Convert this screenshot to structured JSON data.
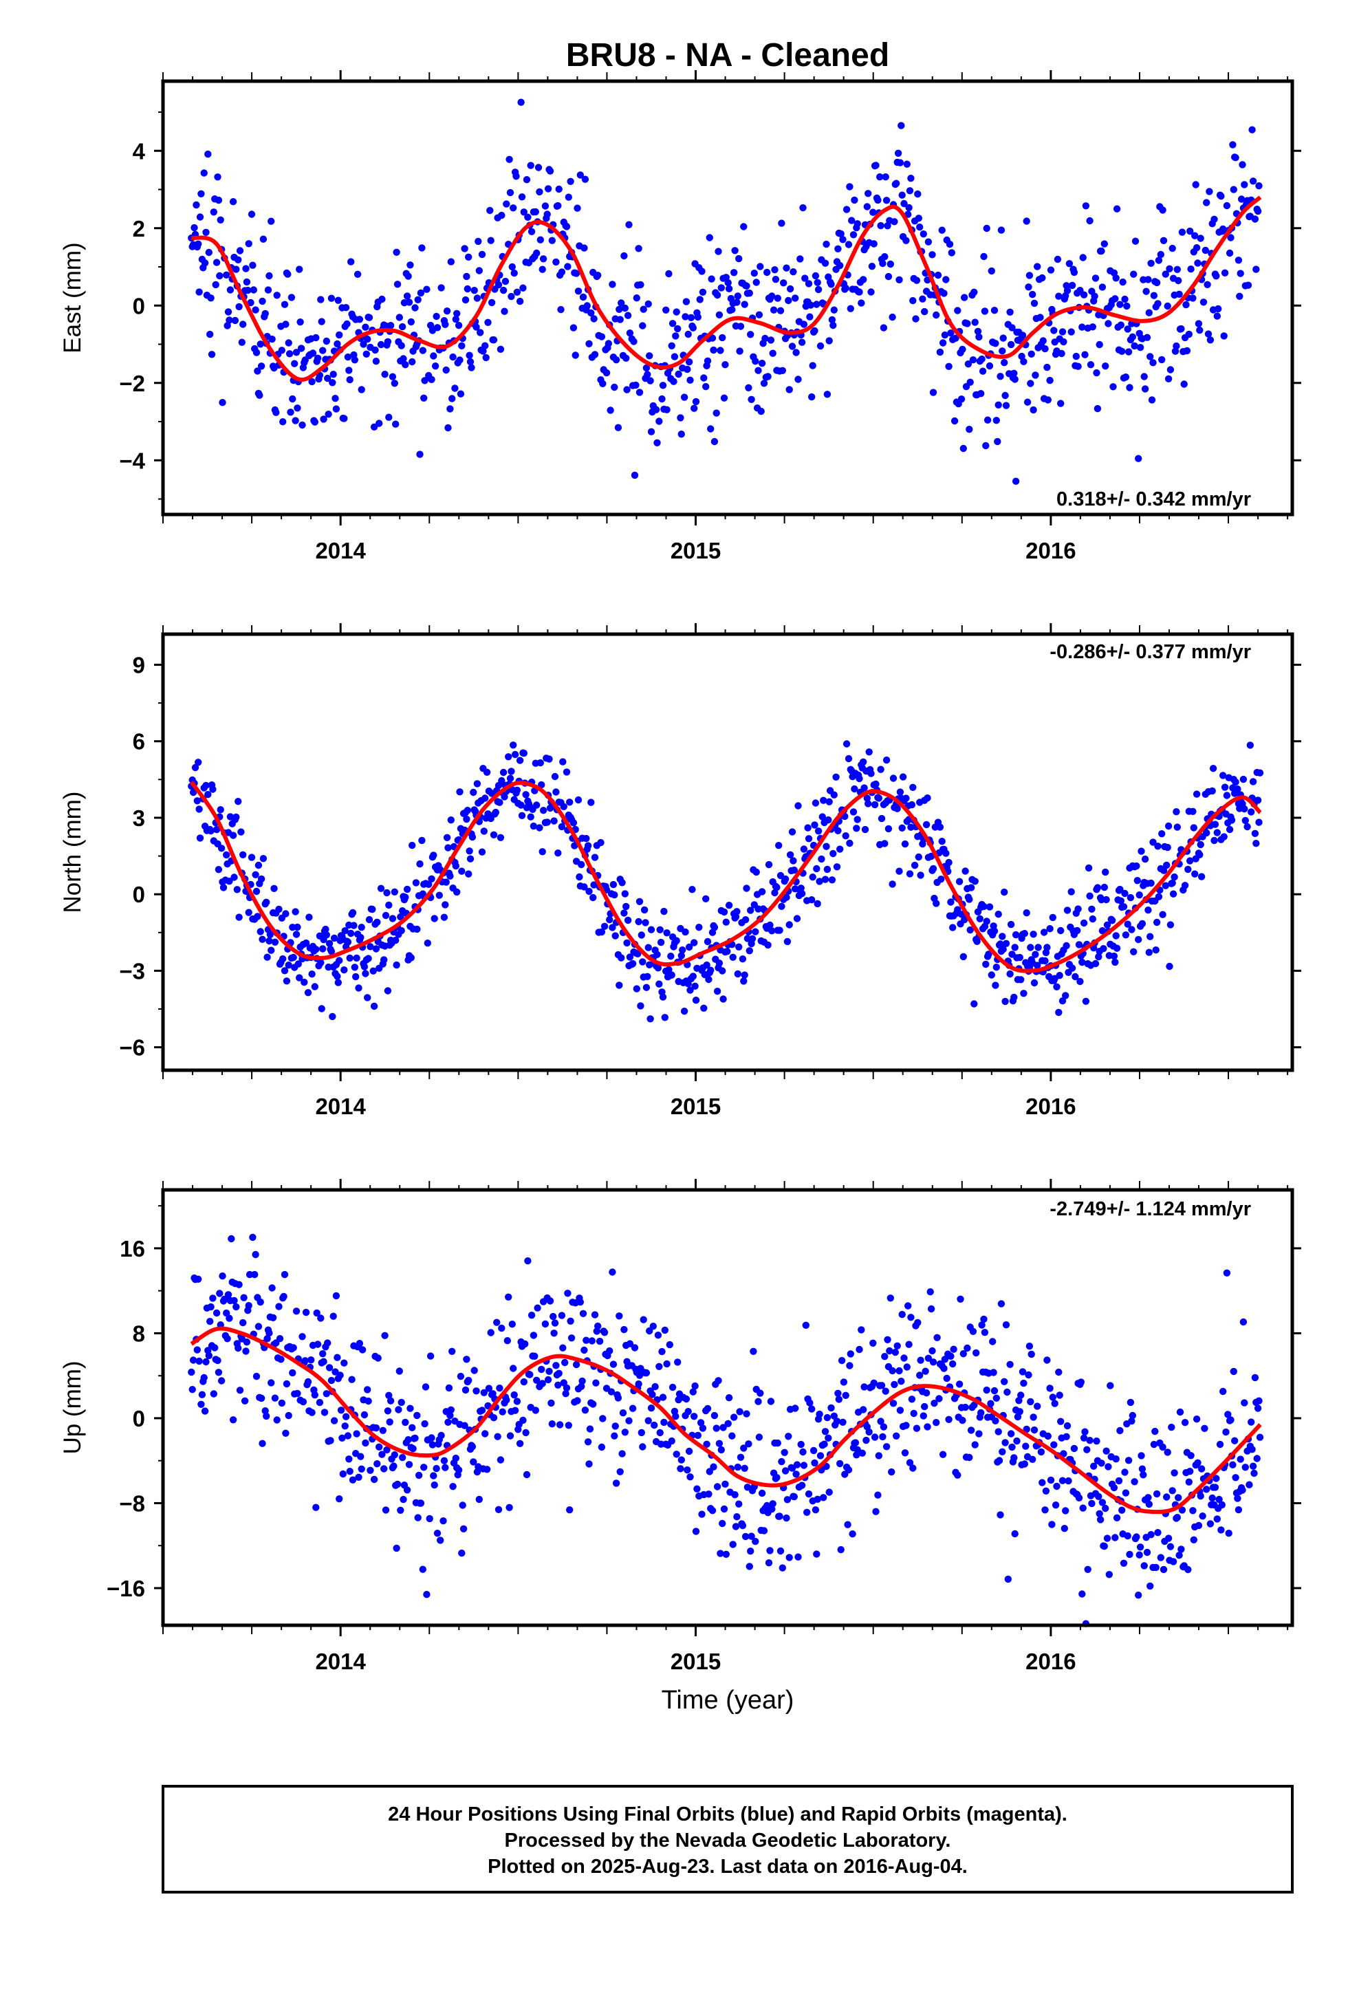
{
  "title": "BRU8  - NA - Cleaned",
  "x_axis_label": "Time (year)",
  "colors": {
    "final_orbits": "#0000ff",
    "model": "#ff0000",
    "rapid_orbits": "#ff00ff"
  },
  "footer": {
    "line1": "24 Hour Positions Using Final Orbits (blue) and Rapid Orbits (magenta).",
    "line2": "Processed by the Nevada Geodetic Laboratory.",
    "line3": "Plotted on 2025-Aug-23. Last data on 2016-Aug-04."
  },
  "chart_data": [
    {
      "type": "scatter",
      "component": "East",
      "ylabel": "East (mm)",
      "xlim": [
        2013.5,
        2016.68
      ],
      "ylim": [
        -5.4,
        5.8
      ],
      "x_ticks": [
        2014,
        2015,
        2016
      ],
      "y_ticks": [
        -4,
        -2,
        0,
        2,
        4
      ],
      "rate_label": "0.318+/- 0.342 mm/yr",
      "series": [
        {
          "name": "Final Orbits (blue)",
          "kind": "points"
        },
        {
          "name": "model",
          "kind": "line",
          "x": [
            2013.58,
            2013.65,
            2013.72,
            2013.8,
            2013.88,
            2013.95,
            2014.02,
            2014.08,
            2014.15,
            2014.22,
            2014.3,
            2014.38,
            2014.45,
            2014.52,
            2014.58,
            2014.65,
            2014.72,
            2014.8,
            2014.88,
            2014.95,
            2015.02,
            2015.1,
            2015.18,
            2015.26,
            2015.33,
            2015.4,
            2015.47,
            2015.53,
            2015.58,
            2015.65,
            2015.72,
            2015.8,
            2015.88,
            2015.95,
            2016.02,
            2016.1,
            2016.18,
            2016.26,
            2016.33,
            2016.4,
            2016.47,
            2016.54,
            2016.59
          ],
          "y": [
            1.75,
            1.6,
            0.3,
            -1.1,
            -1.9,
            -1.6,
            -1.0,
            -0.7,
            -0.65,
            -0.9,
            -1.05,
            -0.3,
            1.0,
            2.0,
            2.1,
            1.4,
            0.0,
            -1.0,
            -1.55,
            -1.5,
            -0.9,
            -0.35,
            -0.45,
            -0.7,
            -0.5,
            0.5,
            1.8,
            2.45,
            2.4,
            1.0,
            -0.5,
            -1.15,
            -1.3,
            -0.7,
            -0.2,
            -0.05,
            -0.25,
            -0.4,
            -0.2,
            0.5,
            1.5,
            2.4,
            2.8
          ]
        }
      ]
    },
    {
      "type": "scatter",
      "component": "North",
      "ylabel": "North (mm)",
      "xlim": [
        2013.5,
        2016.68
      ],
      "ylim": [
        -6.9,
        10.2
      ],
      "x_ticks": [
        2014,
        2015,
        2016
      ],
      "y_ticks": [
        -6,
        -3,
        0,
        3,
        6,
        9
      ],
      "rate_label": "-0.286+/- 0.377 mm/yr",
      "series": [
        {
          "name": "Final Orbits (blue)",
          "kind": "points"
        },
        {
          "name": "model",
          "kind": "line",
          "x": [
            2013.58,
            2013.65,
            2013.72,
            2013.8,
            2013.88,
            2013.95,
            2014.02,
            2014.1,
            2014.18,
            2014.26,
            2014.33,
            2014.4,
            2014.47,
            2014.52,
            2014.58,
            2014.65,
            2014.72,
            2014.8,
            2014.88,
            2014.95,
            2015.02,
            2015.1,
            2015.18,
            2015.25,
            2015.33,
            2015.4,
            2015.47,
            2015.52,
            2015.58,
            2015.65,
            2015.72,
            2015.8,
            2015.88,
            2015.95,
            2016.02,
            2016.1,
            2016.18,
            2016.26,
            2016.33,
            2016.4,
            2016.47,
            2016.54,
            2016.59
          ],
          "y": [
            4.4,
            3.0,
            0.8,
            -1.2,
            -2.3,
            -2.5,
            -2.2,
            -1.7,
            -1.0,
            0.2,
            1.8,
            3.3,
            4.2,
            4.35,
            3.9,
            2.5,
            0.6,
            -1.4,
            -2.6,
            -2.7,
            -2.3,
            -1.8,
            -1.0,
            0.1,
            1.6,
            3.0,
            3.9,
            4.0,
            3.5,
            2.2,
            0.3,
            -1.6,
            -2.8,
            -3.0,
            -2.7,
            -2.1,
            -1.3,
            -0.3,
            0.8,
            2.1,
            3.2,
            3.8,
            3.2
          ]
        }
      ]
    },
    {
      "type": "scatter",
      "component": "Up",
      "ylabel": "Up (mm)",
      "xlim": [
        2013.5,
        2016.68
      ],
      "ylim": [
        -19.5,
        21.5
      ],
      "x_ticks": [
        2014,
        2015,
        2016
      ],
      "y_ticks": [
        -16,
        -8,
        0,
        8,
        16
      ],
      "rate_label": "-2.749+/- 1.124 mm/yr",
      "series": [
        {
          "name": "Final Orbits (blue)",
          "kind": "points"
        },
        {
          "name": "model",
          "kind": "line",
          "x": [
            2013.58,
            2013.65,
            2013.72,
            2013.8,
            2013.88,
            2013.95,
            2014.03,
            2014.1,
            2014.18,
            2014.25,
            2014.3,
            2014.38,
            2014.45,
            2014.52,
            2014.6,
            2014.67,
            2014.75,
            2014.82,
            2014.9,
            2014.97,
            2015.05,
            2015.12,
            2015.2,
            2015.27,
            2015.35,
            2015.42,
            2015.5,
            2015.57,
            2015.63,
            2015.7,
            2015.78,
            2015.85,
            2015.93,
            2016.0,
            2016.08,
            2016.15,
            2016.22,
            2016.28,
            2016.35,
            2016.42,
            2016.5,
            2016.59
          ],
          "y": [
            7.0,
            8.4,
            8.0,
            6.8,
            5.2,
            3.5,
            0.5,
            -1.8,
            -3.2,
            -3.5,
            -3.0,
            -1.0,
            2.0,
            4.5,
            5.8,
            5.5,
            4.5,
            3.0,
            1.0,
            -1.5,
            -3.5,
            -5.5,
            -6.3,
            -6.0,
            -4.5,
            -2.0,
            0.5,
            2.3,
            3.0,
            2.8,
            1.8,
            0.3,
            -1.5,
            -3.0,
            -5.0,
            -6.8,
            -8.3,
            -8.8,
            -8.5,
            -6.5,
            -3.8,
            -0.6
          ]
        }
      ]
    }
  ]
}
